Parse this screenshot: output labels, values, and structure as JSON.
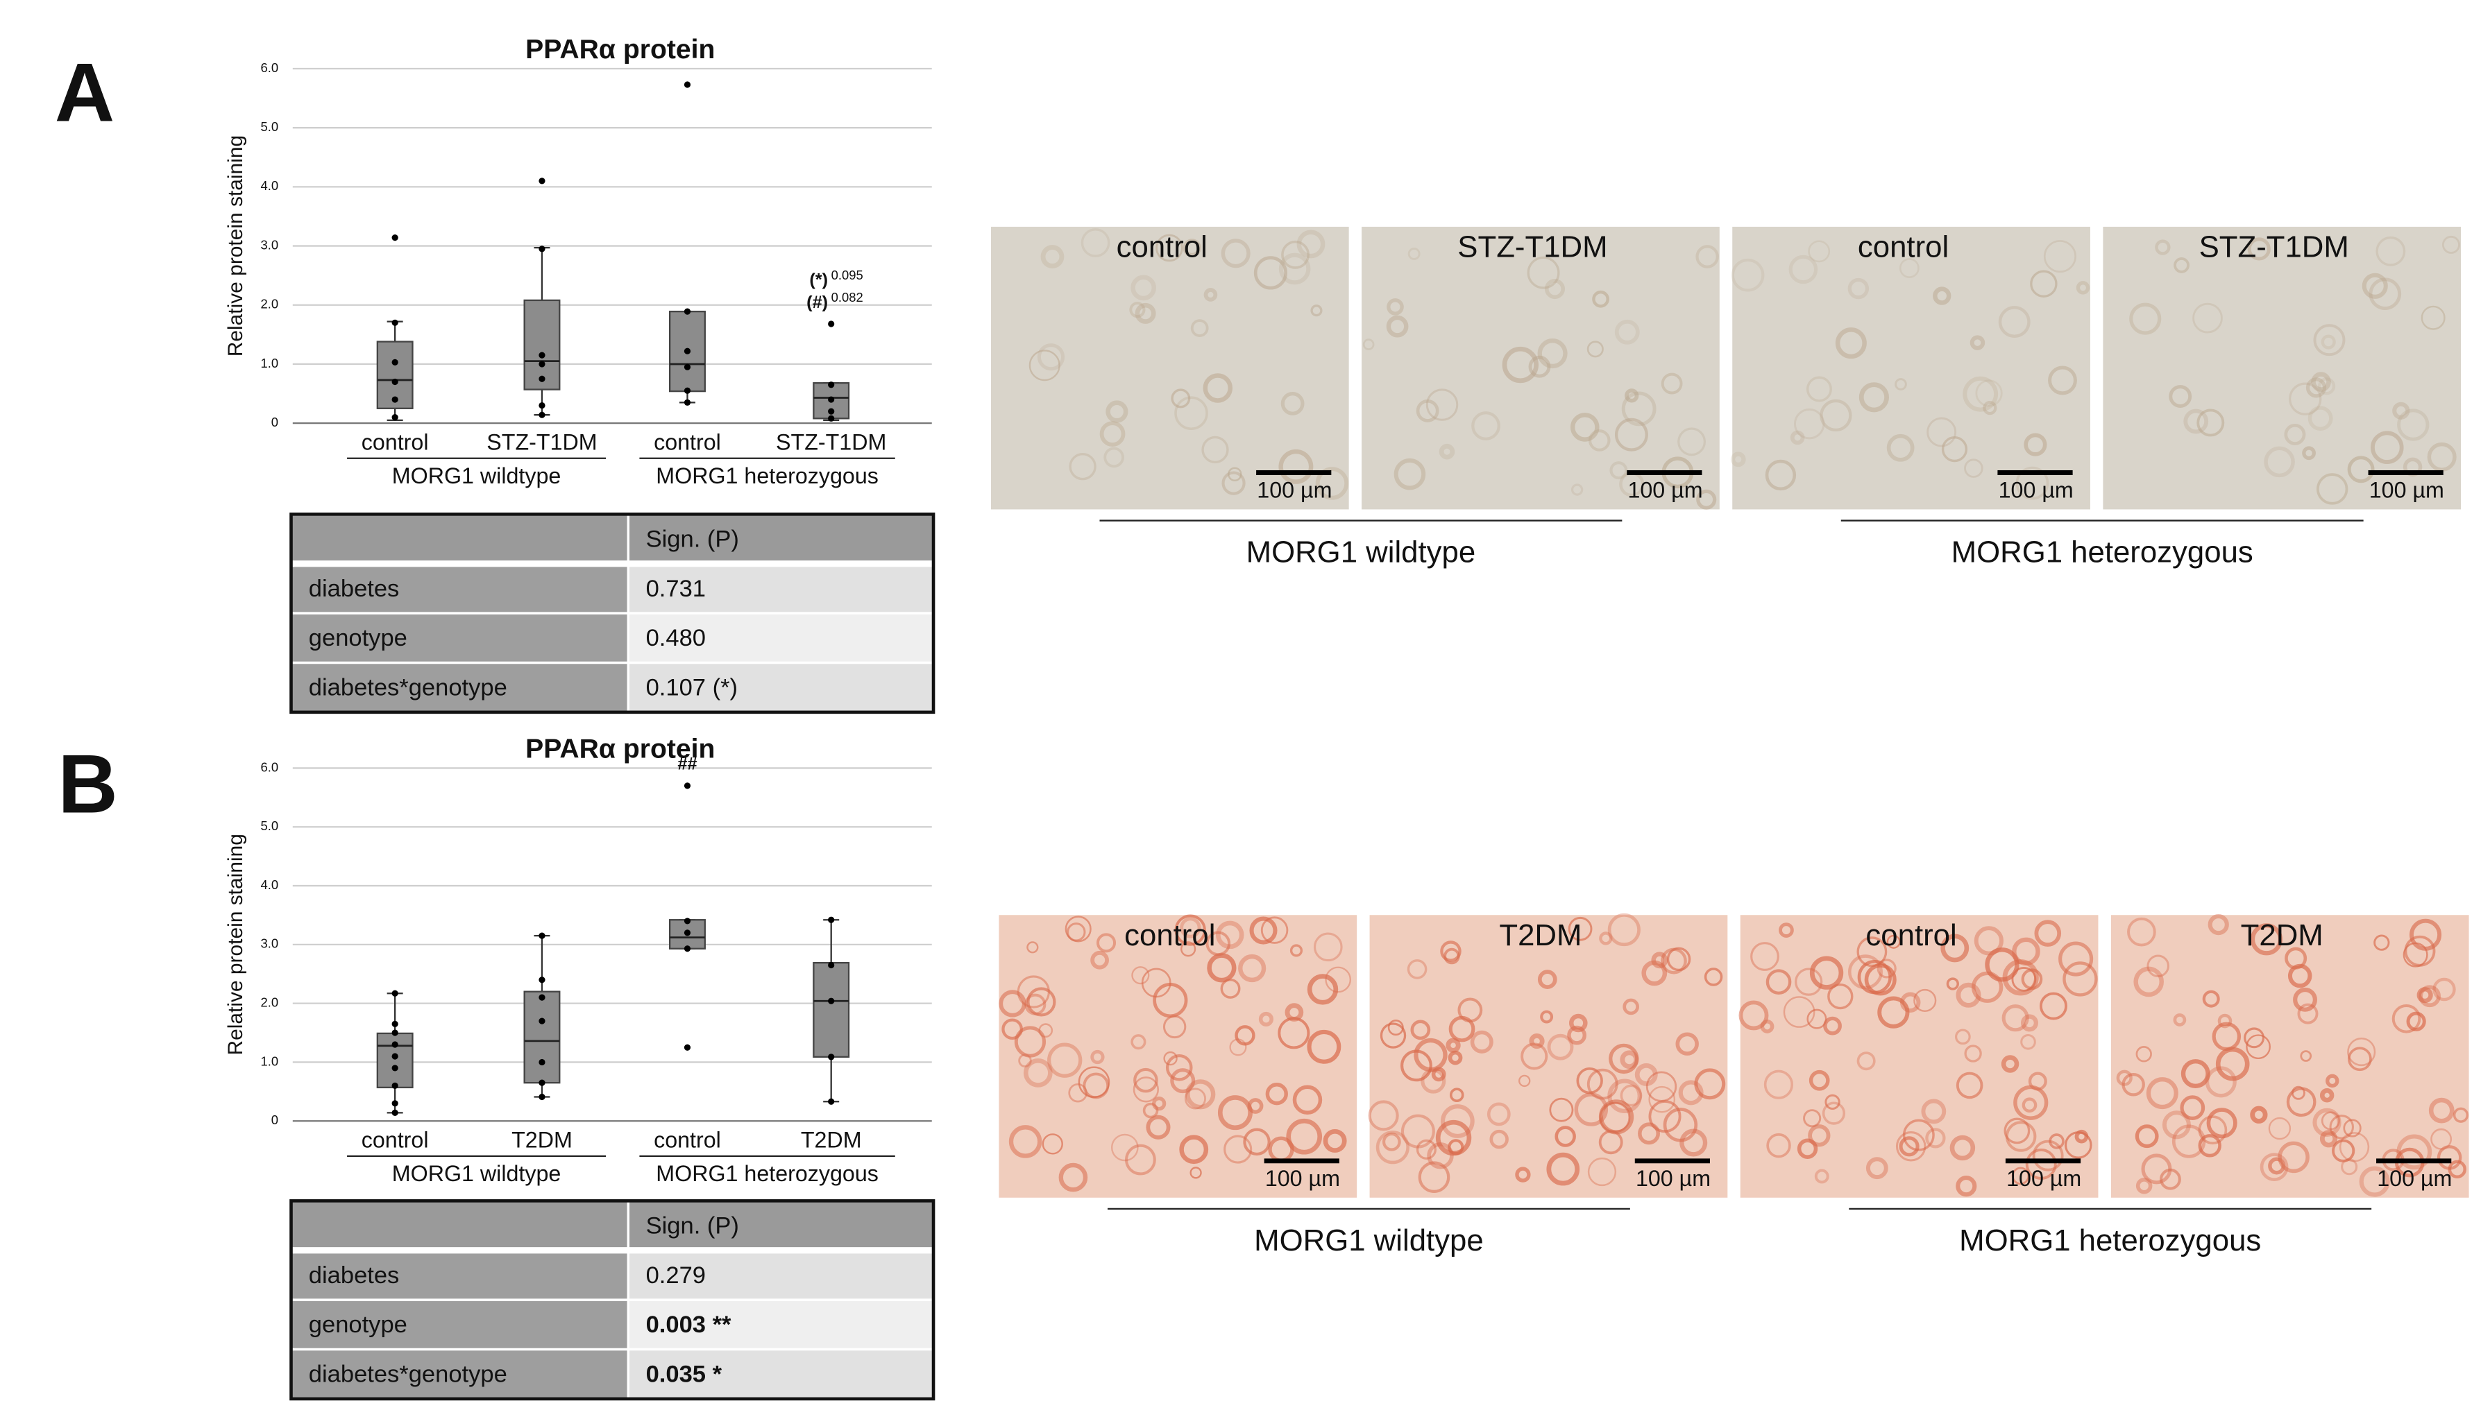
{
  "panels": [
    {
      "label": "A",
      "table": {
        "header": "Sign. (P)",
        "rows": [
          {
            "factor": "diabetes",
            "p": "0.731"
          },
          {
            "factor": "genotype",
            "p": "0.480"
          },
          {
            "factor": "diabetes*genotype",
            "p": "0.107 (*)"
          }
        ]
      },
      "micrographs": {
        "images": [
          {
            "label": "control",
            "scale": "100 µm"
          },
          {
            "label": "STZ-T1DM",
            "scale": "100 µm"
          },
          {
            "label": "control",
            "scale": "100 µm"
          },
          {
            "label": "STZ-T1DM",
            "scale": "100 µm"
          }
        ],
        "groups": [
          "MORG1 wildtype",
          "MORG1 heterozygous"
        ]
      }
    },
    {
      "label": "B",
      "table": {
        "header": "Sign. (P)",
        "rows": [
          {
            "factor": "diabetes",
            "p": "0.279"
          },
          {
            "factor": "genotype",
            "p": "0.003 **",
            "bold": true
          },
          {
            "factor": "diabetes*genotype",
            "p": "0.035 *",
            "bold": true
          }
        ]
      },
      "micrographs": {
        "images": [
          {
            "label": "control",
            "scale": "100 µm"
          },
          {
            "label": "T2DM",
            "scale": "100 µm"
          },
          {
            "label": "control",
            "scale": "100 µm"
          },
          {
            "label": "T2DM",
            "scale": "100 µm"
          }
        ],
        "groups": [
          "MORG1 wildtype",
          "MORG1 heterozygous"
        ]
      }
    }
  ],
  "chart_data": [
    {
      "type": "box",
      "title": "PPARα protein",
      "ylabel": "Relative protein staining",
      "categories": [
        "control",
        "STZ-T1DM",
        "control",
        "STZ-T1DM"
      ],
      "groups": [
        "MORG1 wildtype",
        "MORG1 heterozygous"
      ],
      "ylim": [
        0,
        6
      ],
      "yticks": [
        0,
        {
          "value": 1,
          "label": "1.0"
        },
        {
          "value": 2,
          "label": "2.0"
        },
        {
          "value": 3,
          "label": "3.0"
        },
        {
          "value": 4,
          "label": "4.0"
        },
        {
          "value": 5,
          "label": "5.0"
        },
        {
          "value": 6,
          "label": "6.0"
        }
      ],
      "grid": true,
      "color": "#8c8c8c",
      "boxes": [
        {
          "q1": 0.25,
          "median": 0.73,
          "q3": 1.38,
          "whislo": 0.05,
          "whishi": 1.72,
          "points": [
            3.14,
            1.7,
            1.03,
            0.7,
            0.4,
            0.1
          ]
        },
        {
          "q1": 0.57,
          "median": 1.05,
          "q3": 2.08,
          "whislo": 0.14,
          "whishi": 2.97,
          "points": [
            4.1,
            2.95,
            1.15,
            1.0,
            0.75,
            0.3,
            0.14
          ]
        },
        {
          "q1": 0.54,
          "median": 1.0,
          "q3": 1.89,
          "whislo": 0.35,
          "whishi": 1.89,
          "points": [
            5.73,
            1.89,
            1.22,
            0.95,
            0.55,
            0.35
          ]
        },
        {
          "q1": 0.08,
          "median": 0.43,
          "q3": 0.68,
          "whislo": 0.05,
          "whishi": 0.68,
          "points": [
            1.68,
            0.65,
            0.4,
            0.2,
            0.08
          ],
          "annotations": [
            {
              "text": "(*)",
              "p": "0.095"
            },
            {
              "text": "(#)",
              "p": "0.082"
            }
          ]
        }
      ]
    },
    {
      "type": "box",
      "title": "PPARα protein",
      "ylabel": "Relative protein staining",
      "categories": [
        "control",
        "T2DM",
        "control",
        "T2DM"
      ],
      "groups": [
        "MORG1 wildtype",
        "MORG1 heterozygous"
      ],
      "ylim": [
        0,
        6
      ],
      "yticks": [
        0,
        {
          "value": 1,
          "label": "1.0"
        },
        {
          "value": 2,
          "label": "2.0"
        },
        {
          "value": 3,
          "label": "3.0"
        },
        {
          "value": 4,
          "label": "4.0"
        },
        {
          "value": 5,
          "label": "5.0"
        },
        {
          "value": 6,
          "label": "6.0"
        }
      ],
      "grid": true,
      "color": "#8c8c8c",
      "boxes": [
        {
          "q1": 0.57,
          "median": 1.28,
          "q3": 1.49,
          "whislo": 0.14,
          "whishi": 2.17,
          "points": [
            2.17,
            1.65,
            1.5,
            1.3,
            1.1,
            0.9,
            0.6,
            0.3,
            0.14
          ]
        },
        {
          "q1": 0.65,
          "median": 1.36,
          "q3": 2.2,
          "whislo": 0.41,
          "whishi": 3.15,
          "points": [
            3.15,
            2.4,
            2.1,
            1.7,
            1.0,
            0.65,
            0.41
          ]
        },
        {
          "q1": 2.93,
          "median": 3.12,
          "q3": 3.42,
          "whislo": 2.93,
          "whishi": 3.42,
          "points": [
            5.7,
            3.4,
            3.2,
            2.93,
            1.25
          ],
          "annotations": [
            {
              "text": "##"
            }
          ]
        },
        {
          "q1": 1.09,
          "median": 2.04,
          "q3": 2.69,
          "whislo": 0.33,
          "whishi": 3.42,
          "points": [
            3.42,
            2.65,
            2.04,
            1.09,
            0.33
          ]
        }
      ]
    }
  ]
}
